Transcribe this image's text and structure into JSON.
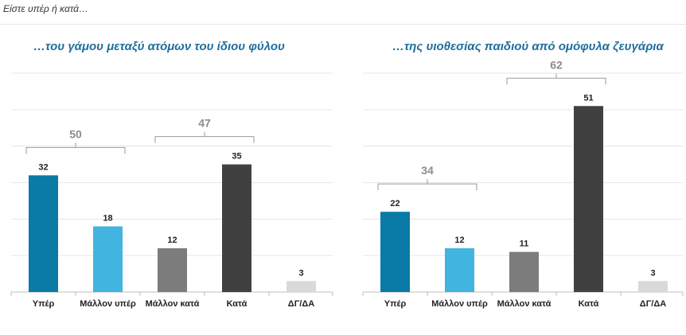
{
  "header": {
    "question": "Είστε υπέρ ή κατά…"
  },
  "colors": {
    "strong_favor": "#0a7aa6",
    "favor": "#41b4e0",
    "against": "#7c7c7c",
    "strong_against": "#404040",
    "dk": "#d9d9d9",
    "bracket": "#9a9a9a",
    "bracket_label": "#8c8c8c",
    "grid": "#e6e6e6",
    "title": "#1f6e9c"
  },
  "chart_data": [
    {
      "type": "bar",
      "title": "…του γάμου μεταξύ ατόμων του ίδιου φύλου",
      "categories": [
        "Υπέρ",
        "Μάλλον υπέρ",
        "Μάλλον κατά",
        "Κατά",
        "ΔΓ/ΔΑ"
      ],
      "values": [
        32,
        18,
        12,
        35,
        3
      ],
      "ylim": [
        0,
        60
      ],
      "grid": true,
      "groups": [
        {
          "label": "50",
          "from": 0,
          "to": 1
        },
        {
          "label": "47",
          "from": 2,
          "to": 3
        }
      ]
    },
    {
      "type": "bar",
      "title": "…της υιοθεσίας παιδιού από ομόφυλα ζευγάρια",
      "categories": [
        "Υπέρ",
        "Μάλλον υπέρ",
        "Μάλλον κατά",
        "Κατά",
        "ΔΓ/ΔΑ"
      ],
      "values": [
        22,
        12,
        11,
        51,
        3
      ],
      "ylim": [
        0,
        60
      ],
      "grid": true,
      "groups": [
        {
          "label": "34",
          "from": 0,
          "to": 1
        },
        {
          "label": "62",
          "from": 2,
          "to": 3
        }
      ]
    }
  ]
}
